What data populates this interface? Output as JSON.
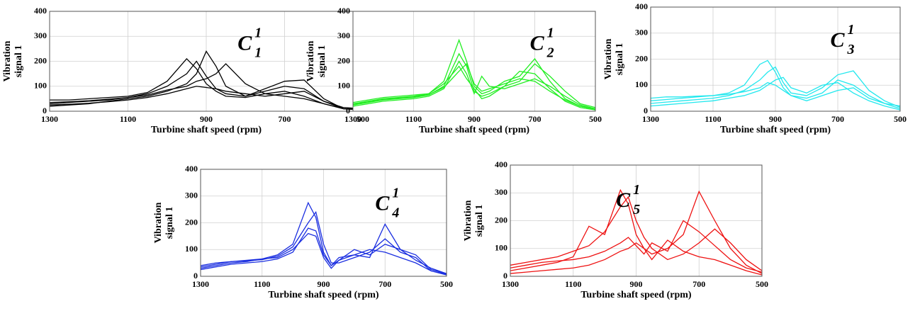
{
  "chart_data": [
    {
      "type": "line",
      "annotation": {
        "letter": "C",
        "superscript": "1",
        "subscript": "1"
      },
      "xlabel": "Turbine shaft speed (rpm)",
      "ylabel": [
        "Vibration",
        "signal 1"
      ],
      "x": [
        1300,
        1250,
        1200,
        1150,
        1100,
        1050,
        1000,
        950,
        925,
        900,
        875,
        850,
        800,
        750,
        700,
        650,
        600,
        550,
        500
      ],
      "xlim": [
        1300,
        500
      ],
      "xticks": [
        1300,
        1100,
        900,
        700,
        500
      ],
      "ylim": [
        0,
        400
      ],
      "yticks": [
        0,
        100,
        200,
        300,
        400
      ],
      "grid": true,
      "series": [
        {
          "color": "#000000",
          "values": [
            30,
            35,
            40,
            45,
            55,
            70,
            100,
            150,
            200,
            140,
            90,
            70,
            60,
            80,
            100,
            90,
            40,
            10,
            10
          ]
        },
        {
          "color": "#000000",
          "values": [
            45,
            45,
            50,
            55,
            60,
            75,
            120,
            210,
            170,
            110,
            80,
            60,
            55,
            70,
            80,
            60,
            30,
            10,
            5
          ]
        },
        {
          "color": "#000000",
          "values": [
            20,
            25,
            30,
            40,
            50,
            60,
            80,
            110,
            150,
            240,
            180,
            100,
            60,
            90,
            120,
            125,
            50,
            10,
            5
          ]
        },
        {
          "color": "#000000",
          "values": [
            35,
            38,
            42,
            48,
            55,
            65,
            85,
            100,
            120,
            130,
            150,
            190,
            110,
            70,
            60,
            50,
            30,
            10,
            10
          ]
        },
        {
          "color": "#000000",
          "values": [
            25,
            28,
            32,
            38,
            45,
            55,
            70,
            90,
            100,
            95,
            90,
            80,
            70,
            60,
            70,
            80,
            40,
            15,
            10
          ]
        }
      ]
    },
    {
      "type": "line",
      "annotation": {
        "letter": "C",
        "superscript": "1",
        "subscript": "2"
      },
      "xlabel": "Turbine shaft speed (rpm)",
      "ylabel": [
        "Vibration",
        "signal 1"
      ],
      "x": [
        1300,
        1250,
        1200,
        1150,
        1100,
        1050,
        1000,
        950,
        925,
        900,
        875,
        850,
        800,
        750,
        700,
        650,
        600,
        550,
        500
      ],
      "xlim": [
        1300,
        500
      ],
      "xticks": [
        1300,
        1100,
        900,
        700,
        500
      ],
      "ylim": [
        0,
        400
      ],
      "yticks": [
        0,
        100,
        200,
        300,
        400
      ],
      "grid": true,
      "series": [
        {
          "color": "#22ee22",
          "values": [
            30,
            40,
            50,
            55,
            60,
            70,
            120,
            285,
            200,
            100,
            70,
            80,
            120,
            140,
            210,
            120,
            50,
            20,
            10
          ]
        },
        {
          "color": "#22ee22",
          "values": [
            25,
            35,
            45,
            50,
            55,
            65,
            100,
            230,
            180,
            80,
            60,
            70,
            100,
            160,
            150,
            90,
            40,
            15,
            5
          ]
        },
        {
          "color": "#22ee22",
          "values": [
            20,
            30,
            40,
            45,
            50,
            60,
            90,
            200,
            150,
            70,
            140,
            100,
            90,
            110,
            130,
            100,
            60,
            25,
            10
          ]
        },
        {
          "color": "#22ee22",
          "values": [
            35,
            45,
            55,
            60,
            65,
            70,
            110,
            180,
            130,
            90,
            50,
            60,
            100,
            120,
            190,
            140,
            80,
            30,
            15
          ]
        },
        {
          "color": "#22ee22",
          "values": [
            28,
            38,
            48,
            53,
            58,
            66,
            95,
            160,
            190,
            110,
            80,
            90,
            110,
            130,
            120,
            80,
            45,
            20,
            8
          ]
        }
      ]
    },
    {
      "type": "line",
      "annotation": {
        "letter": "C",
        "superscript": "1",
        "subscript": "3"
      },
      "xlabel": "Turbine shaft speed (rpm)",
      "ylabel": [
        "Vibration",
        "signal 1"
      ],
      "x": [
        1300,
        1250,
        1200,
        1150,
        1100,
        1050,
        1000,
        950,
        925,
        900,
        875,
        850,
        800,
        750,
        700,
        650,
        600,
        550,
        500
      ],
      "xlim": [
        1300,
        500
      ],
      "xticks": [
        1300,
        1100,
        900,
        700,
        500
      ],
      "ylim": [
        0,
        400
      ],
      "yticks": [
        0,
        100,
        200,
        300,
        400
      ],
      "grid": true,
      "series": [
        {
          "color": "#22e8ee",
          "values": [
            40,
            45,
            50,
            55,
            60,
            70,
            100,
            180,
            195,
            150,
            90,
            60,
            50,
            70,
            120,
            100,
            60,
            30,
            10
          ]
        },
        {
          "color": "#22e8ee",
          "values": [
            30,
            35,
            40,
            45,
            50,
            60,
            80,
            120,
            150,
            170,
            110,
            70,
            60,
            90,
            140,
            155,
            80,
            40,
            15
          ]
        },
        {
          "color": "#22e8ee",
          "values": [
            50,
            55,
            55,
            58,
            60,
            65,
            75,
            90,
            110,
            100,
            80,
            60,
            40,
            60,
            80,
            90,
            50,
            30,
            20
          ]
        },
        {
          "color": "#22e8ee",
          "values": [
            20,
            25,
            30,
            35,
            40,
            50,
            60,
            80,
            100,
            120,
            130,
            90,
            70,
            100,
            110,
            70,
            40,
            20,
            5
          ]
        }
      ]
    },
    {
      "type": "line",
      "annotation": {
        "letter": "C",
        "superscript": "1",
        "subscript": "4"
      },
      "xlabel": "Turbine shaft speed (rpm)",
      "ylabel": [
        "Vibration",
        "signal 1"
      ],
      "x": [
        1300,
        1250,
        1200,
        1150,
        1100,
        1050,
        1000,
        950,
        925,
        900,
        875,
        850,
        800,
        750,
        700,
        650,
        600,
        550,
        500
      ],
      "xlim": [
        1300,
        500
      ],
      "xticks": [
        1300,
        1100,
        900,
        700,
        500
      ],
      "ylim": [
        0,
        400
      ],
      "yticks": [
        0,
        100,
        200,
        300,
        400
      ],
      "grid": true,
      "series": [
        {
          "color": "#1a2ee0",
          "values": [
            30,
            40,
            50,
            55,
            65,
            80,
            120,
            275,
            220,
            90,
            40,
            60,
            80,
            70,
            195,
            100,
            60,
            30,
            10
          ]
        },
        {
          "color": "#1a2ee0",
          "values": [
            35,
            45,
            55,
            58,
            62,
            75,
            110,
            200,
            240,
            120,
            50,
            50,
            70,
            90,
            140,
            90,
            70,
            20,
            8
          ]
        },
        {
          "color": "#1a2ee0",
          "values": [
            40,
            50,
            55,
            60,
            65,
            70,
            100,
            160,
            150,
            70,
            30,
            60,
            100,
            80,
            120,
            100,
            80,
            25,
            10
          ]
        },
        {
          "color": "#1a2ee0",
          "values": [
            25,
            35,
            45,
            50,
            55,
            65,
            90,
            180,
            170,
            80,
            40,
            70,
            80,
            100,
            90,
            70,
            50,
            20,
            5
          ]
        }
      ]
    },
    {
      "type": "line",
      "annotation": {
        "letter": "C",
        "superscript": "1",
        "subscript": "5"
      },
      "xlabel": "Turbine shaft speed (rpm)",
      "ylabel": [
        "Vibration",
        "signal 1"
      ],
      "x": [
        1300,
        1250,
        1200,
        1150,
        1100,
        1050,
        1000,
        950,
        925,
        900,
        875,
        850,
        800,
        750,
        700,
        650,
        600,
        550,
        500
      ],
      "xlim": [
        1300,
        500
      ],
      "xticks": [
        1300,
        1100,
        900,
        700,
        500
      ],
      "ylim": [
        0,
        400
      ],
      "yticks": [
        0,
        100,
        200,
        300,
        400
      ],
      "grid": true,
      "series": [
        {
          "color": "#ee1111",
          "values": [
            20,
            30,
            40,
            50,
            70,
            180,
            150,
            310,
            260,
            150,
            100,
            80,
            100,
            150,
            305,
            200,
            100,
            40,
            10
          ]
        },
        {
          "color": "#ee1111",
          "values": [
            40,
            50,
            60,
            70,
            90,
            110,
            160,
            250,
            285,
            200,
            140,
            100,
            60,
            80,
            120,
            170,
            120,
            60,
            20
          ]
        },
        {
          "color": "#ee1111",
          "values": [
            30,
            40,
            50,
            55,
            60,
            70,
            90,
            120,
            140,
            110,
            80,
            120,
            90,
            200,
            160,
            110,
            60,
            30,
            15
          ]
        },
        {
          "color": "#ee1111",
          "values": [
            10,
            15,
            20,
            25,
            30,
            40,
            60,
            90,
            100,
            120,
            100,
            60,
            130,
            90,
            70,
            60,
            40,
            20,
            5
          ]
        }
      ]
    }
  ]
}
